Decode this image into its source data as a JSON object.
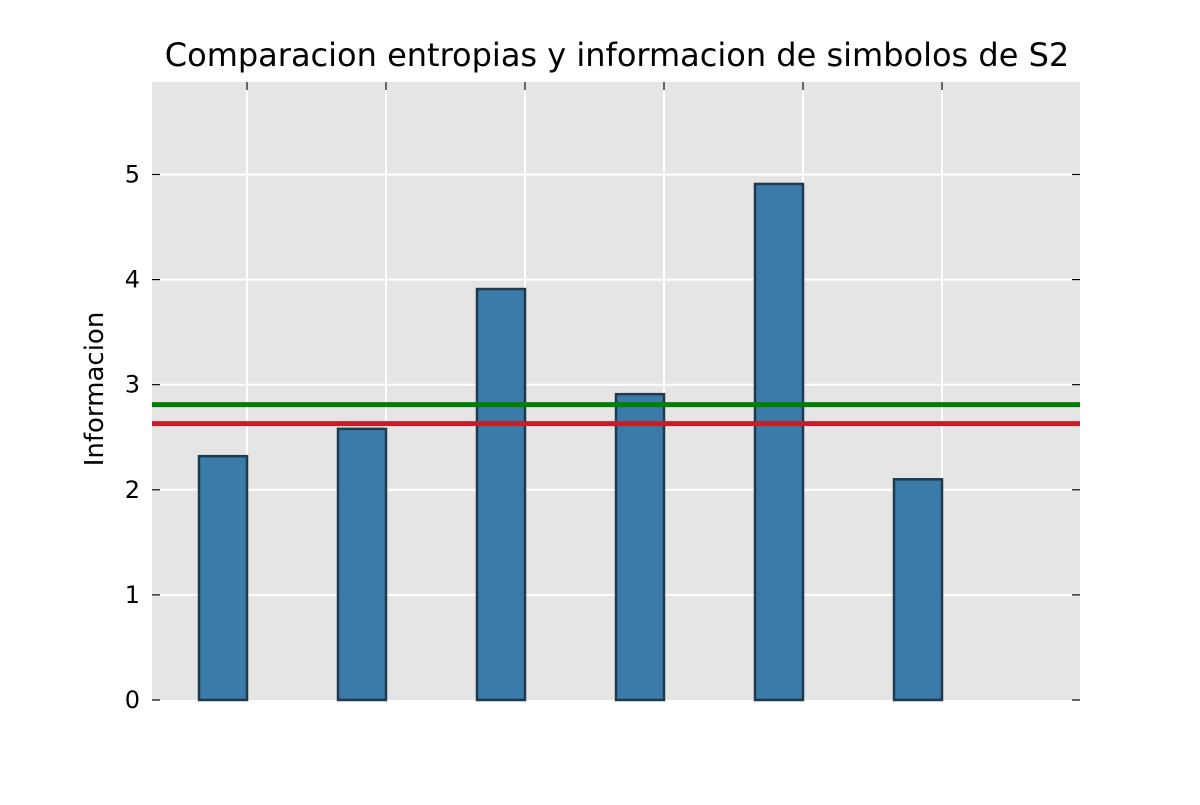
{
  "chart_data": {
    "type": "bar",
    "title": "Comparacion entropias y informacion de simbolos de S2",
    "xlabel": "",
    "ylabel": "Informacion",
    "categories": [
      "",
      "",
      "",
      "",
      "",
      ""
    ],
    "values": [
      2.32,
      2.58,
      3.91,
      2.91,
      4.91,
      2.1
    ],
    "ylim": [
      0,
      5.88
    ],
    "yticks": [
      0,
      1,
      2,
      3,
      4,
      5
    ],
    "grid": true,
    "reference_lines": [
      {
        "value": 2.81,
        "color": "#008000"
      },
      {
        "value": 2.63,
        "color": "#c41e2a"
      }
    ],
    "colors": {
      "bar_fill": "#3b7ba9",
      "bar_edge": "#1f3a4d",
      "plot_background": "#e5e5e5",
      "grid": "#ffffff"
    }
  }
}
